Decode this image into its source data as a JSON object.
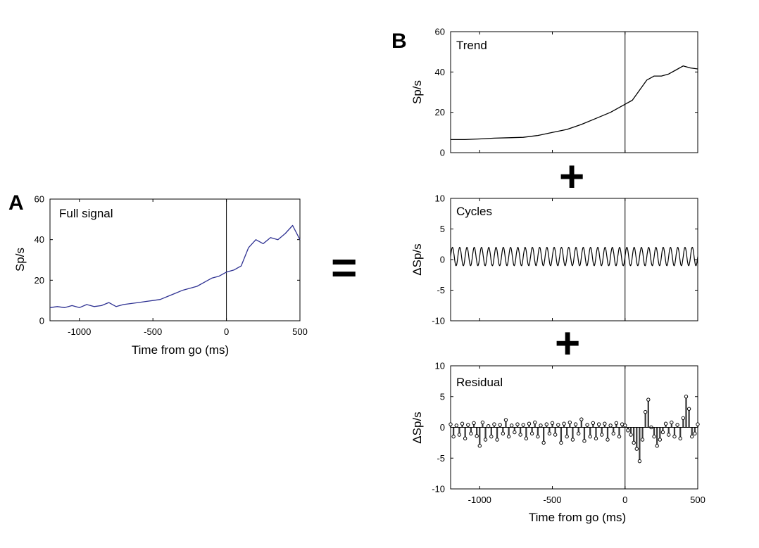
{
  "figure": {
    "panel_a_letter": "A",
    "panel_b_letter": "B",
    "equals_sign": "=",
    "plus_sign": "+"
  },
  "colors": {
    "full_signal_line": "#2e3192",
    "trace": "#000000",
    "stem_fill": "#3a3a3a",
    "axis": "#000000"
  },
  "chart_data": [
    {
      "id": "full",
      "type": "line",
      "title": "Full signal",
      "xlabel": "Time from go (ms)",
      "ylabel": "Sp/s",
      "xlim": [
        -1200,
        500
      ],
      "ylim": [
        0,
        60
      ],
      "xticks": [
        -1000,
        -500,
        0,
        500
      ],
      "yticks": [
        0,
        20,
        40,
        60
      ],
      "xtick_labels": [
        "-1000",
        "-500",
        "0",
        "500"
      ],
      "ytick_labels": [
        "0",
        "20",
        "40",
        "60"
      ],
      "vline_x": 0,
      "grid": false,
      "x": [
        -1200,
        -1150,
        -1100,
        -1050,
        -1000,
        -950,
        -900,
        -850,
        -800,
        -750,
        -700,
        -650,
        -600,
        -550,
        -500,
        -450,
        -400,
        -350,
        -300,
        -250,
        -200,
        -150,
        -100,
        -50,
        0,
        50,
        100,
        150,
        200,
        250,
        300,
        350,
        400,
        450,
        500
      ],
      "y": [
        6.5,
        7,
        6.5,
        7.5,
        6.5,
        8,
        7,
        7.5,
        9,
        7,
        8,
        8.5,
        9,
        9.5,
        10,
        10.5,
        12,
        13.5,
        15,
        16,
        17,
        19,
        21,
        22,
        24,
        25,
        27,
        36,
        40,
        38,
        41,
        40,
        43,
        47,
        40
      ]
    },
    {
      "id": "trend",
      "type": "line",
      "title": "Trend",
      "xlabel": "",
      "ylabel": "Sp/s",
      "xlim": [
        -1200,
        500
      ],
      "ylim": [
        0,
        60
      ],
      "xticks": [
        -1000,
        -500,
        0,
        500
      ],
      "yticks": [
        0,
        20,
        40,
        60
      ],
      "ytick_labels": [
        "0",
        "20",
        "40",
        "60"
      ],
      "vline_x": 0,
      "grid": false,
      "x": [
        -1200,
        -1100,
        -1000,
        -900,
        -800,
        -700,
        -600,
        -500,
        -400,
        -300,
        -200,
        -100,
        0,
        50,
        100,
        150,
        200,
        250,
        300,
        350,
        400,
        450,
        500
      ],
      "y": [
        6.5,
        6.5,
        6.8,
        7.2,
        7.4,
        7.6,
        8.5,
        10,
        11.5,
        14,
        17,
        20,
        24,
        26,
        31,
        36,
        38,
        38,
        39,
        41,
        43,
        42,
        41.5
      ]
    },
    {
      "id": "cycles",
      "type": "line",
      "title": "Cycles",
      "xlabel": "",
      "ylabel": "ΔSp/s",
      "xlim": [
        -1200,
        500
      ],
      "ylim": [
        -10,
        10
      ],
      "xticks": [
        -1000,
        -500,
        0,
        500
      ],
      "yticks": [
        -10,
        -5,
        0,
        5,
        10
      ],
      "ytick_labels": [
        "-10",
        "-5",
        "0",
        "5",
        "10"
      ],
      "vline_x": 0,
      "grid": false,
      "oscillation": {
        "period_ms": 50,
        "amplitude": 1.5,
        "offset": 0.5
      }
    },
    {
      "id": "residual",
      "type": "bar",
      "title": "Residual",
      "xlabel": "Time from go (ms)",
      "ylabel": "ΔSp/s",
      "xlim": [
        -1200,
        500
      ],
      "ylim": [
        -10,
        10
      ],
      "xticks": [
        -1000,
        -500,
        0,
        500
      ],
      "yticks": [
        -10,
        -5,
        0,
        5,
        10
      ],
      "xtick_labels": [
        "-1000",
        "-500",
        "0",
        "500"
      ],
      "ytick_labels": [
        "-10",
        "-5",
        "0",
        "5",
        "10"
      ],
      "vline_x": 0,
      "grid": false,
      "x": [
        -1200,
        -1180,
        -1160,
        -1140,
        -1120,
        -1100,
        -1080,
        -1060,
        -1040,
        -1020,
        -1000,
        -980,
        -960,
        -940,
        -920,
        -900,
        -880,
        -860,
        -840,
        -820,
        -800,
        -780,
        -760,
        -740,
        -720,
        -700,
        -680,
        -660,
        -640,
        -620,
        -600,
        -580,
        -560,
        -540,
        -520,
        -500,
        -480,
        -460,
        -440,
        -420,
        -400,
        -380,
        -360,
        -340,
        -320,
        -300,
        -280,
        -260,
        -240,
        -220,
        -200,
        -180,
        -160,
        -140,
        -120,
        -100,
        -80,
        -60,
        -40,
        -20,
        0,
        20,
        40,
        60,
        80,
        100,
        120,
        140,
        160,
        180,
        200,
        220,
        240,
        260,
        280,
        300,
        320,
        340,
        360,
        380,
        400,
        420,
        440,
        460,
        480,
        500
      ],
      "y": [
        0.5,
        -1.5,
        0.3,
        -1.2,
        0.6,
        -1.8,
        0.4,
        -1,
        0.7,
        -1.4,
        -3,
        0.8,
        -2,
        0.2,
        -1.5,
        0.5,
        -2,
        0.4,
        -1,
        1.2,
        -1.5,
        0.3,
        -0.8,
        0.5,
        -1.2,
        0.4,
        -1.8,
        0.6,
        -1,
        0.8,
        -1.5,
        0.3,
        -2.5,
        0.5,
        -1,
        0.7,
        -1.2,
        0.4,
        -2.5,
        0.6,
        -1.5,
        0.8,
        -2,
        0.5,
        -1,
        1.3,
        -2.2,
        0.4,
        -1.5,
        0.7,
        -1.8,
        0.5,
        -1.2,
        0.6,
        -2,
        0.3,
        -1,
        0.7,
        -1.5,
        0.5,
        0.3,
        -0.5,
        -1.2,
        -2.5,
        -3.5,
        -5.5,
        -2,
        2.5,
        4.5,
        0,
        -1.5,
        -3,
        -2,
        -0.8,
        0.6,
        -1.2,
        0.8,
        -1.5,
        0.4,
        -1.8,
        1.5,
        5,
        3,
        -1.5,
        -1,
        0.5
      ]
    }
  ]
}
